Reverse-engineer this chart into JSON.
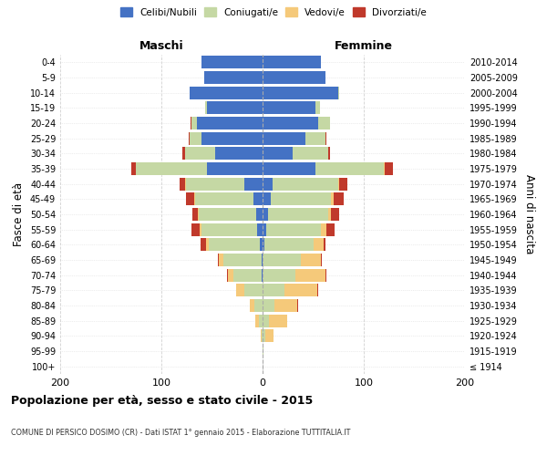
{
  "age_groups": [
    "100+",
    "95-99",
    "90-94",
    "85-89",
    "80-84",
    "75-79",
    "70-74",
    "65-69",
    "60-64",
    "55-59",
    "50-54",
    "45-49",
    "40-44",
    "35-39",
    "30-34",
    "25-29",
    "20-24",
    "15-19",
    "10-14",
    "5-9",
    "0-4"
  ],
  "birth_years": [
    "≤ 1914",
    "1915-1919",
    "1920-1924",
    "1925-1929",
    "1930-1934",
    "1935-1939",
    "1940-1944",
    "1945-1949",
    "1950-1954",
    "1955-1959",
    "1960-1964",
    "1965-1969",
    "1970-1974",
    "1975-1979",
    "1980-1984",
    "1985-1989",
    "1990-1994",
    "1995-1999",
    "2000-2004",
    "2005-2009",
    "2010-2014"
  ],
  "maschi": {
    "celibi": [
      0,
      0,
      0,
      0,
      0,
      0,
      1,
      1,
      3,
      5,
      6,
      9,
      18,
      55,
      47,
      60,
      65,
      55,
      72,
      58,
      60
    ],
    "coniugati": [
      0,
      0,
      1,
      4,
      8,
      18,
      28,
      38,
      50,
      55,
      57,
      58,
      58,
      70,
      30,
      12,
      5,
      2,
      0,
      0,
      0
    ],
    "vedovi": [
      0,
      0,
      1,
      3,
      5,
      8,
      5,
      4,
      3,
      2,
      1,
      1,
      1,
      0,
      0,
      0,
      0,
      0,
      0,
      0,
      0
    ],
    "divorziati": [
      0,
      0,
      0,
      0,
      0,
      0,
      1,
      1,
      5,
      8,
      5,
      8,
      5,
      5,
      2,
      1,
      1,
      0,
      0,
      0,
      0
    ]
  },
  "femmine": {
    "nubili": [
      0,
      0,
      0,
      0,
      0,
      0,
      0,
      0,
      2,
      4,
      5,
      8,
      10,
      52,
      30,
      42,
      55,
      52,
      75,
      62,
      58
    ],
    "coniugate": [
      0,
      1,
      3,
      6,
      12,
      22,
      32,
      38,
      48,
      54,
      60,
      60,
      65,
      68,
      35,
      20,
      12,
      5,
      1,
      0,
      0
    ],
    "vedove": [
      0,
      0,
      8,
      18,
      22,
      32,
      30,
      20,
      10,
      5,
      3,
      2,
      1,
      1,
      0,
      0,
      0,
      0,
      0,
      0,
      0
    ],
    "divorziate": [
      0,
      0,
      0,
      0,
      1,
      1,
      1,
      1,
      2,
      8,
      8,
      10,
      8,
      8,
      2,
      1,
      0,
      0,
      0,
      0,
      0
    ]
  },
  "colors": {
    "celibi_nubili": "#4472c4",
    "coniugati": "#c5d8a4",
    "vedovi": "#f5c97a",
    "divorziati": "#c0392b"
  },
  "title": "Popolazione per età, sesso e stato civile - 2015",
  "subtitle": "COMUNE DI PERSICO DOSIMO (CR) - Dati ISTAT 1° gennaio 2015 - Elaborazione TUTTITALIA.IT",
  "ylabel_left": "Fasce di età",
  "ylabel_right": "Anni di nascita",
  "xlabel_maschi": "Maschi",
  "xlabel_femmine": "Femmine",
  "xlim": 200,
  "background_color": "#ffffff",
  "grid_color": "#cccccc"
}
